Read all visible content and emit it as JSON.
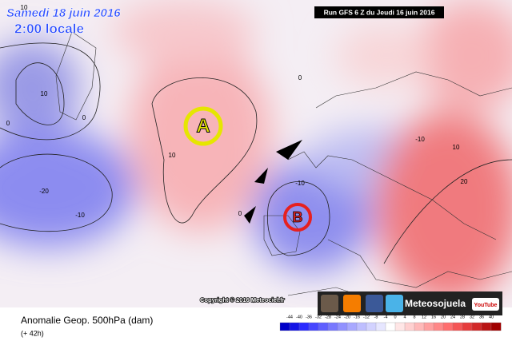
{
  "header": {
    "date": "Samedi 18 juin 2016",
    "time": "2:00 locale",
    "run": "Run GFS 6 Z du Jeudi 16 juin 2016"
  },
  "map": {
    "high_label": "A",
    "low_label": "B",
    "contour_labels": [
      10,
      10,
      0,
      0,
      -20,
      -10,
      10,
      0,
      0,
      -10,
      -10,
      10,
      20
    ]
  },
  "footer": {
    "copyright": "Copyright © 2016 Meteociel.fr",
    "brand": "Meteosojuela",
    "youtube": "YouTube",
    "caption": "Anomalie Geop. 500hPa (dam)",
    "lead": "(+ 42h)"
  },
  "colorbar": {
    "labels": [
      -44,
      -40,
      -36,
      -32,
      -28,
      -24,
      -20,
      -16,
      -12,
      -8,
      -4,
      0,
      4,
      8,
      12,
      16,
      20,
      24,
      28,
      32,
      36,
      40
    ],
    "colors": [
      "#0000c8",
      "#1414e6",
      "#2a2aff",
      "#4646ff",
      "#5f5fff",
      "#7878ff",
      "#9191ff",
      "#a8a8ff",
      "#bebeff",
      "#d2d2ff",
      "#e6e6ff",
      "#ffffff",
      "#ffe6e6",
      "#ffd0d0",
      "#ffb9b9",
      "#ffa0a0",
      "#ff8888",
      "#ff6e6e",
      "#f55555",
      "#e63c3c",
      "#d22828",
      "#b91414",
      "#a00000"
    ]
  }
}
